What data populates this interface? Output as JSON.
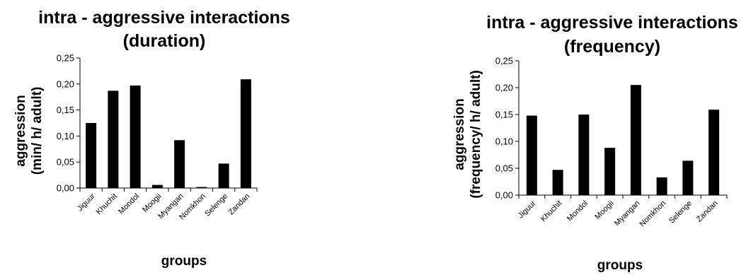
{
  "chart_data": [
    {
      "type": "bar",
      "title": [
        "intra - aggressive interactions",
        "(duration)"
      ],
      "ylabel": [
        "aggression",
        "(min/ h/ adult)"
      ],
      "xlabel": "groups",
      "categories": [
        "Jiguur",
        "Khuchit",
        "Mondol",
        "Moogii",
        "Myangan",
        "Nomkhon",
        "Selenge",
        "Zandan"
      ],
      "values": [
        0.125,
        0.187,
        0.197,
        0.006,
        0.092,
        0.002,
        0.047,
        0.209
      ],
      "ylim": [
        0,
        0.25
      ],
      "yticks": [
        "0,00",
        "0,05",
        "0,10",
        "0,15",
        "0,20",
        "0,25"
      ],
      "grid": false,
      "bar_color": "#000000"
    },
    {
      "type": "bar",
      "title": [
        "intra - aggressive interactions",
        "(frequency)"
      ],
      "ylabel": [
        "aggression",
        "(frequency/ h/ adult)"
      ],
      "xlabel": "groups",
      "categories": [
        "Jiguur",
        "Khuchit",
        "Mondol",
        "Moogii",
        "Myangan",
        "Nomkhon",
        "Selenge",
        "Zandan"
      ],
      "values": [
        0.148,
        0.047,
        0.15,
        0.088,
        0.205,
        0.033,
        0.064,
        0.159
      ],
      "ylim": [
        0,
        0.25
      ],
      "yticks": [
        "0,00",
        "0,05",
        "0,10",
        "0,15",
        "0,20",
        "0,25"
      ],
      "grid": false,
      "bar_color": "#000000"
    }
  ]
}
